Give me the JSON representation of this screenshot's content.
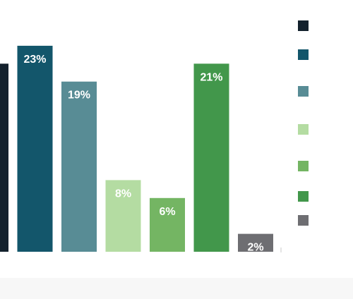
{
  "chart_data": {
    "type": "bar",
    "categories": [
      "",
      "",
      "",
      "",
      "",
      "",
      ""
    ],
    "values": [
      21,
      23,
      19,
      8,
      6,
      21,
      2
    ],
    "data_labels": [
      "%",
      "23%",
      "19%",
      "8%",
      "6%",
      "21%",
      "2%"
    ],
    "colors": [
      "#13212d",
      "#13566b",
      "#588c95",
      "#b4dca2",
      "#74b563",
      "#42974b",
      "#6e6e72"
    ],
    "ylim": [
      0,
      25
    ],
    "grid": false,
    "legend": {
      "placement": "right",
      "entries": [
        {
          "label": "",
          "color": "#13212d"
        },
        {
          "label": "",
          "color": "#13566b"
        },
        {
          "label": "",
          "color": "#588c95"
        },
        {
          "label": "",
          "color": "#b4dca2"
        },
        {
          "label": "",
          "color": "#74b563"
        },
        {
          "label": "",
          "color": "#42974b"
        },
        {
          "label": "",
          "color": "#6e6e72"
        }
      ]
    }
  }
}
